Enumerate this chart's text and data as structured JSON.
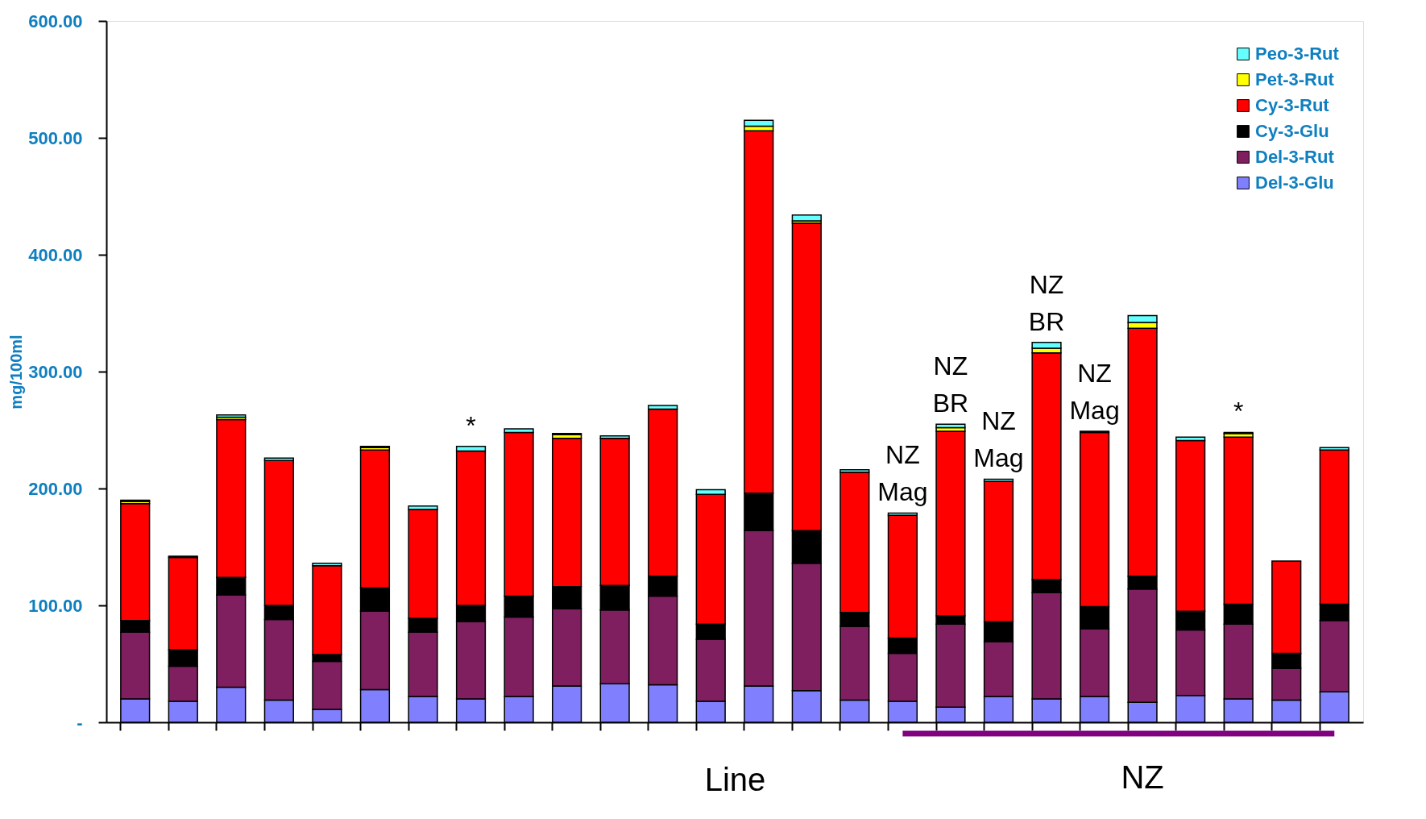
{
  "chart_data": {
    "type": "bar",
    "stacked": true,
    "categories": [
      null,
      null,
      null,
      null,
      null,
      null,
      null,
      null,
      null,
      null,
      null,
      null,
      null,
      null,
      null,
      null,
      null,
      null,
      null,
      null,
      null,
      null,
      null,
      null,
      null,
      null
    ],
    "xlabel": "Line",
    "ylabel": "mg/100ml",
    "ylim": [
      0,
      600
    ],
    "yticks": [
      {
        "value": 0,
        "label": "-"
      },
      {
        "value": 100,
        "label": "100.00"
      },
      {
        "value": 200,
        "label": "200.00"
      },
      {
        "value": 300,
        "label": "300.00"
      },
      {
        "value": 400,
        "label": "400.00"
      },
      {
        "value": 500,
        "label": "500.00"
      },
      {
        "value": 600,
        "label": "600.00"
      }
    ],
    "series": [
      {
        "name": "Del-3-Glu",
        "color": "#8080ff",
        "values": [
          20,
          18,
          30,
          19,
          11,
          28,
          22,
          20,
          22,
          31,
          33,
          32,
          18,
          31,
          27,
          19,
          18,
          13,
          22,
          20,
          22,
          17,
          23,
          20,
          19,
          26
        ]
      },
      {
        "name": "Del-3-Rut",
        "color": "#7f1f5f",
        "values": [
          57,
          30,
          79,
          69,
          41,
          67,
          55,
          66,
          68,
          66,
          63,
          76,
          53,
          133,
          109,
          63,
          41,
          71,
          47,
          91,
          58,
          97,
          56,
          64,
          27,
          61
        ]
      },
      {
        "name": "Cy-3-Glu",
        "color": "#000000",
        "values": [
          10,
          14,
          15,
          12,
          6,
          20,
          12,
          14,
          18,
          19,
          21,
          17,
          13,
          32,
          28,
          12,
          13,
          7,
          17,
          11,
          19,
          11,
          16,
          17,
          13,
          14
        ]
      },
      {
        "name": "Cy-3-Rut",
        "color": "#ff0000",
        "values": [
          100,
          79,
          135,
          124,
          76,
          118,
          93,
          132,
          140,
          127,
          126,
          143,
          111,
          310,
          263,
          120,
          105,
          158,
          120,
          194,
          149,
          212,
          146,
          143,
          79,
          132
        ]
      },
      {
        "name": "Pet-3-Rut",
        "color": "#ffff00",
        "values": [
          2,
          0,
          2,
          0,
          0,
          2,
          0,
          0,
          0,
          3,
          0,
          0,
          0,
          4,
          2,
          0,
          0,
          3,
          0,
          4,
          0,
          5,
          0,
          3,
          0,
          0
        ]
      },
      {
        "name": "Peo-3-Rut",
        "color": "#66ffff",
        "values": [
          1,
          1,
          2,
          2,
          2,
          1,
          3,
          4,
          3,
          1,
          2,
          3,
          4,
          5,
          5,
          2,
          2,
          3,
          2,
          5,
          1,
          6,
          3,
          1,
          0,
          2
        ]
      }
    ],
    "annotations": [
      "*",
      "NZ\nMag",
      "NZ\nBR",
      "NZ\nMag",
      "NZ\nBR",
      "NZ\nMag",
      "*",
      "NZ"
    ],
    "legend": "top right",
    "grid": false
  }
}
